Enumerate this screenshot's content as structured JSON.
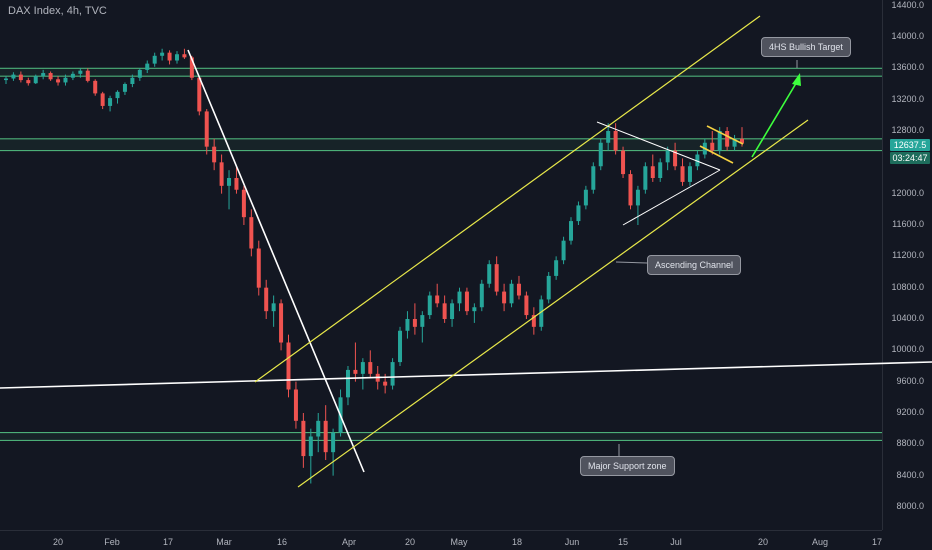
{
  "header": {
    "title": "DAX Index, 4h, TVC"
  },
  "colors": {
    "up": "#26a69a",
    "down": "#ef5350",
    "channel": "#e8e84a",
    "zone": "#4caf78",
    "green_arrow": "#3dff3d",
    "white_line": "#ffffff"
  },
  "price_labels": {
    "last": "12637.5",
    "countdown": "03:24:47"
  },
  "annotations": {
    "target": "4HS Bullish Target",
    "channel": "Ascending Channel",
    "support": "Major Support zone"
  },
  "chart_data": {
    "type": "candlestick",
    "title": "DAX Index, 4h, TVC",
    "y_ticks": [
      "14400.0",
      "14000.0",
      "13600.0",
      "13200.0",
      "12800.0",
      "12400.0",
      "12000.0",
      "11600.0",
      "11200.0",
      "10800.0",
      "10400.0",
      "10000.0",
      "9600.0",
      "9200.0",
      "8800.0",
      "8400.0",
      "8000.0"
    ],
    "x_ticks": [
      "20",
      "Feb",
      "17",
      "Mar",
      "16",
      "Apr",
      "20",
      "May",
      "18",
      "Jun",
      "15",
      "Jul",
      "20",
      "Aug",
      "17"
    ],
    "ylim": [
      7800,
      14500
    ],
    "series": [
      {
        "values": [
          [
            13450,
            13500,
            13400,
            13470
          ],
          [
            13470,
            13550,
            13440,
            13520
          ],
          [
            13520,
            13560,
            13420,
            13450
          ],
          [
            13450,
            13480,
            13380,
            13410
          ],
          [
            13410,
            13520,
            13400,
            13500
          ],
          [
            13500,
            13580,
            13460,
            13540
          ],
          [
            13540,
            13560,
            13440,
            13460
          ],
          [
            13460,
            13500,
            13380,
            13420
          ],
          [
            13420,
            13520,
            13380,
            13480
          ],
          [
            13480,
            13560,
            13450,
            13530
          ],
          [
            13530,
            13600,
            13480,
            13570
          ],
          [
            13570,
            13600,
            13420,
            13440
          ],
          [
            13440,
            13460,
            13250,
            13280
          ],
          [
            13280,
            13300,
            13080,
            13120
          ],
          [
            13120,
            13250,
            13050,
            13220
          ],
          [
            13220,
            13320,
            13150,
            13300
          ],
          [
            13300,
            13420,
            13260,
            13400
          ],
          [
            13400,
            13520,
            13360,
            13480
          ],
          [
            13480,
            13600,
            13440,
            13580
          ],
          [
            13580,
            13700,
            13540,
            13660
          ],
          [
            13660,
            13800,
            13620,
            13760
          ],
          [
            13760,
            13850,
            13700,
            13800
          ],
          [
            13800,
            13830,
            13650,
            13700
          ],
          [
            13700,
            13820,
            13660,
            13780
          ],
          [
            13780,
            13850,
            13720,
            13740
          ],
          [
            13740,
            13760,
            13450,
            13480
          ],
          [
            13480,
            13500,
            13000,
            13050
          ],
          [
            13050,
            13080,
            12500,
            12600
          ],
          [
            12600,
            12700,
            12300,
            12400
          ],
          [
            12400,
            12500,
            12000,
            12100
          ],
          [
            12100,
            12300,
            11800,
            12200
          ],
          [
            12200,
            12350,
            12000,
            12050
          ],
          [
            12050,
            12100,
            11600,
            11700
          ],
          [
            11700,
            11800,
            11200,
            11300
          ],
          [
            11300,
            11400,
            10700,
            10800
          ],
          [
            10800,
            10900,
            10400,
            10500
          ],
          [
            10500,
            10700,
            10300,
            10600
          ],
          [
            10600,
            10650,
            10000,
            10100
          ],
          [
            10100,
            10200,
            9400,
            9500
          ],
          [
            9500,
            9600,
            9000,
            9100
          ],
          [
            9100,
            9200,
            8500,
            8650
          ],
          [
            8650,
            9000,
            8300,
            8900
          ],
          [
            8900,
            9200,
            8700,
            9100
          ],
          [
            9100,
            9300,
            8600,
            8700
          ],
          [
            8700,
            9000,
            8400,
            8950
          ],
          [
            8950,
            9500,
            8900,
            9400
          ],
          [
            9400,
            9800,
            9300,
            9750
          ],
          [
            9750,
            10100,
            9600,
            9700
          ],
          [
            9700,
            9900,
            9500,
            9850
          ],
          [
            9850,
            10000,
            9650,
            9700
          ],
          [
            9700,
            9800,
            9500,
            9600
          ],
          [
            9600,
            9700,
            9450,
            9550
          ],
          [
            9550,
            9900,
            9500,
            9850
          ],
          [
            9850,
            10300,
            9800,
            10250
          ],
          [
            10250,
            10500,
            10150,
            10400
          ],
          [
            10400,
            10600,
            10200,
            10300
          ],
          [
            10300,
            10500,
            10100,
            10450
          ],
          [
            10450,
            10750,
            10400,
            10700
          ],
          [
            10700,
            10850,
            10550,
            10600
          ],
          [
            10600,
            10700,
            10350,
            10400
          ],
          [
            10400,
            10650,
            10300,
            10600
          ],
          [
            10600,
            10800,
            10500,
            10750
          ],
          [
            10750,
            10800,
            10450,
            10500
          ],
          [
            10500,
            10600,
            10350,
            10550
          ],
          [
            10550,
            10900,
            10500,
            10850
          ],
          [
            10850,
            11150,
            10800,
            11100
          ],
          [
            11100,
            11200,
            10700,
            10750
          ],
          [
            10750,
            10850,
            10500,
            10600
          ],
          [
            10600,
            10900,
            10550,
            10850
          ],
          [
            10850,
            10950,
            10650,
            10700
          ],
          [
            10700,
            10750,
            10400,
            10450
          ],
          [
            10450,
            10550,
            10200,
            10300
          ],
          [
            10300,
            10700,
            10250,
            10650
          ],
          [
            10650,
            11000,
            10600,
            10950
          ],
          [
            10950,
            11200,
            10900,
            11150
          ],
          [
            11150,
            11450,
            11100,
            11400
          ],
          [
            11400,
            11700,
            11350,
            11650
          ],
          [
            11650,
            11900,
            11600,
            11850
          ],
          [
            11850,
            12100,
            11800,
            12050
          ],
          [
            12050,
            12400,
            12000,
            12350
          ],
          [
            12350,
            12700,
            12300,
            12650
          ],
          [
            12650,
            12900,
            12550,
            12800
          ],
          [
            12800,
            12900,
            12500,
            12550
          ],
          [
            12550,
            12600,
            12200,
            12250
          ],
          [
            12250,
            12300,
            11800,
            11850
          ],
          [
            11850,
            12100,
            11600,
            12050
          ],
          [
            12050,
            12400,
            12000,
            12350
          ],
          [
            12350,
            12500,
            12150,
            12200
          ],
          [
            12200,
            12450,
            12150,
            12400
          ],
          [
            12400,
            12600,
            12300,
            12550
          ],
          [
            12550,
            12650,
            12300,
            12350
          ],
          [
            12350,
            12450,
            12100,
            12150
          ],
          [
            12150,
            12400,
            12100,
            12350
          ],
          [
            12350,
            12550,
            12300,
            12500
          ],
          [
            12500,
            12700,
            12450,
            12650
          ],
          [
            12650,
            12800,
            12500,
            12550
          ],
          [
            12550,
            12850,
            12500,
            12800
          ],
          [
            12800,
            12850,
            12550,
            12600
          ],
          [
            12600,
            12750,
            12550,
            12700
          ],
          [
            12700,
            12850,
            12600,
            12640
          ]
        ]
      }
    ],
    "levels": [
      13600,
      13500,
      12700,
      12550,
      8950,
      8850
    ]
  }
}
